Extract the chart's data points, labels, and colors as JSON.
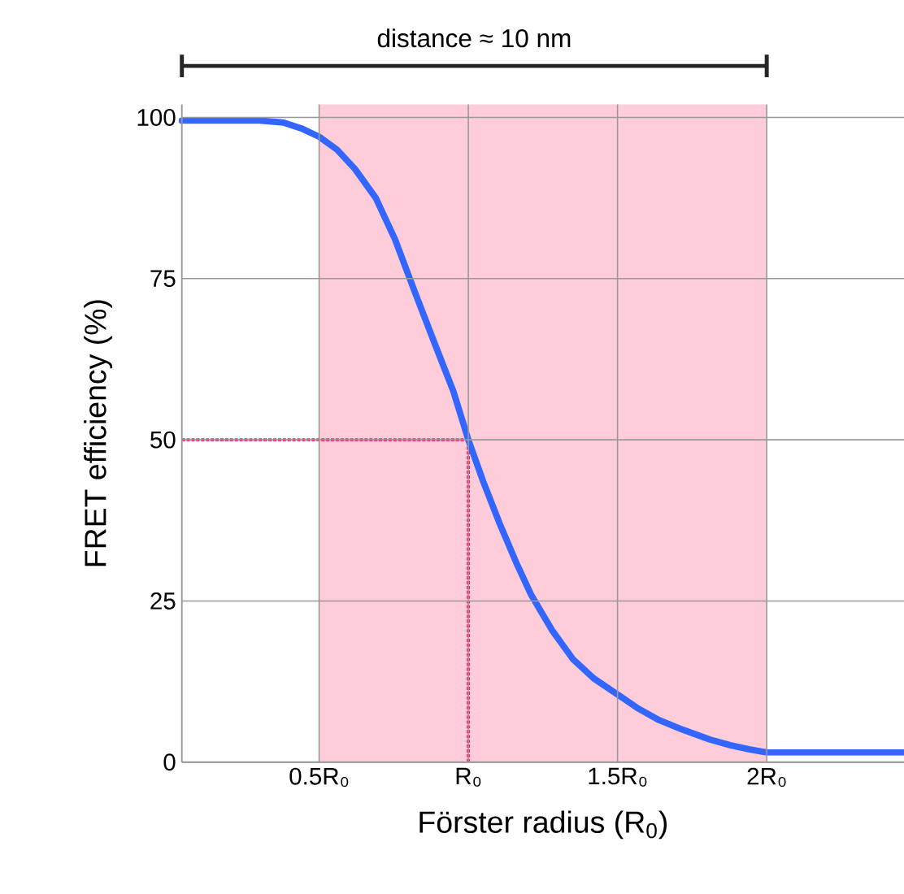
{
  "chart_data": {
    "type": "line",
    "xlabel": "Förster radius (R$_{0}$)",
    "ylabel": "FRET efficiency (%)",
    "xlim": [
      0.04,
      2.46
    ],
    "ylim": [
      0,
      102
    ],
    "xticks": [
      {
        "value": 0.5,
        "label": "0.5R₀"
      },
      {
        "value": 1,
        "label": "R₀"
      },
      {
        "value": 1.5,
        "label": "1.5R₀"
      },
      {
        "value": 2,
        "label": "2R₀"
      }
    ],
    "yticks": [
      0,
      25,
      50,
      75,
      100
    ],
    "grid": true,
    "series": [
      {
        "color": "#3366ff",
        "x": [
          0.04,
          0.3,
          0.38,
          0.44,
          0.5,
          0.56,
          0.62,
          0.69,
          0.755,
          0.82,
          0.89,
          0.95,
          1.0,
          1.05,
          1.105,
          1.16,
          1.21,
          1.28,
          1.35,
          1.42,
          1.5,
          1.57,
          1.64,
          1.72,
          1.81,
          1.88,
          1.94,
          2.0,
          2.46
        ],
        "values": [
          99.5,
          99.5,
          99.2,
          98.3,
          97,
          95,
          92,
          87.5,
          81,
          73,
          64.6,
          57.5,
          50,
          43.5,
          37,
          31,
          26,
          20.5,
          16,
          13,
          10.5,
          8.3,
          6.5,
          5,
          3.5,
          2.6,
          2,
          1.5,
          1.5
        ]
      }
    ],
    "bands": [
      {
        "axis": "x",
        "from": 0.5,
        "to": 2,
        "color": "#ffccda"
      }
    ],
    "ref_lines": [
      {
        "axis": "y",
        "value": 50,
        "color": "#ff1a66",
        "line_style": "dotted"
      },
      {
        "axis": "x",
        "value": 1,
        "color": "#ff1a66",
        "line_style": "dotted"
      }
    ],
    "annotations": [
      "distance ≈ 10 nm"
    ]
  }
}
